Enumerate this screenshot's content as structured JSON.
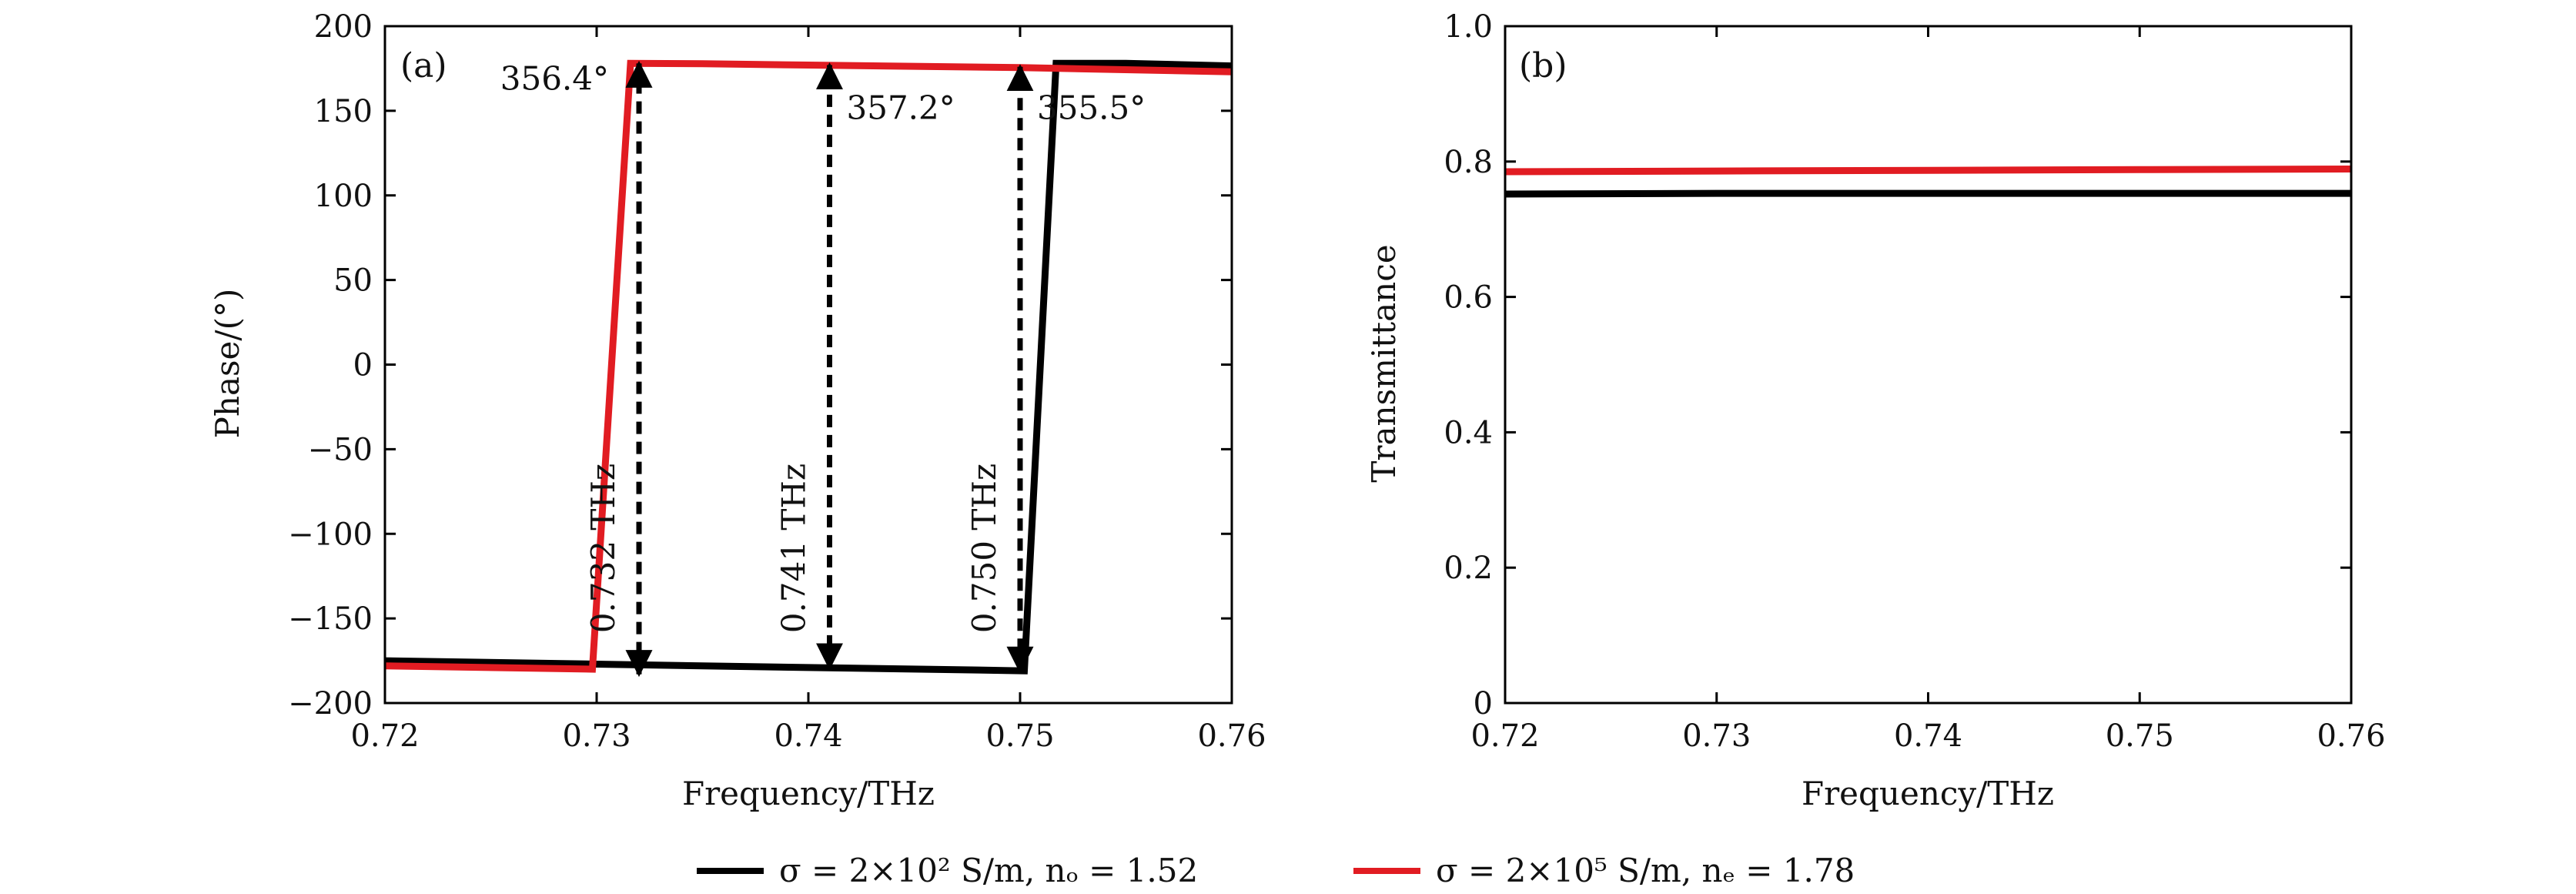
{
  "chart_data": [
    {
      "panel": "(a)",
      "type": "line",
      "xlabel": "Frequency/THz",
      "ylabel": "Phase/(°)",
      "xlim": [
        0.72,
        0.76
      ],
      "ylim": [
        -200,
        200
      ],
      "xticks": [
        0.72,
        0.73,
        0.74,
        0.75,
        0.76
      ],
      "xtick_labels": [
        "0.72",
        "0.73",
        "0.74",
        "0.75",
        "0.76"
      ],
      "yticks": [
        200,
        150,
        100,
        50,
        0,
        -50,
        -100,
        -150,
        -200
      ],
      "ytick_labels": [
        "200",
        "150",
        "100",
        "50",
        "0",
        "−50",
        "−100",
        "−150",
        "−200"
      ],
      "series": [
        {
          "color": "#000000",
          "x": [
            0.72,
            0.73,
            0.74,
            0.748,
            0.7502,
            0.7517,
            0.755,
            0.76
          ],
          "y": [
            -175,
            -177,
            -179,
            -180.5,
            -181,
            178,
            178,
            176.5
          ]
        },
        {
          "color": "#e11c22",
          "x": [
            0.72,
            0.7298,
            0.7316,
            0.735,
            0.74,
            0.75,
            0.76
          ],
          "y": [
            -178,
            -180,
            178,
            177.8,
            177,
            175.5,
            173
          ]
        }
      ],
      "annotations": [
        {
          "text": "356.4°",
          "x": 0.7316,
          "y": 178
        },
        {
          "text": "357.2°",
          "x": 0.741,
          "y": 176
        },
        {
          "text": "355.5°",
          "x": 0.75,
          "y": 176
        },
        {
          "text": "0.732 THz",
          "x": 0.732
        },
        {
          "text": "0.741 THz",
          "x": 0.741
        },
        {
          "text": "0.750 THz",
          "x": 0.75
        }
      ],
      "arrows": [
        {
          "x": 0.732,
          "y_from": -183,
          "y_to": 178
        },
        {
          "x": 0.741,
          "y_from": -179,
          "y_to": 177
        },
        {
          "x": 0.75,
          "y_from": -181,
          "y_to": 176
        }
      ]
    },
    {
      "panel": "(b)",
      "type": "line",
      "xlabel": "Frequency/THz",
      "ylabel": "Transmittance",
      "xlim": [
        0.72,
        0.76
      ],
      "ylim": [
        0,
        1.0
      ],
      "xticks": [
        0.72,
        0.73,
        0.74,
        0.75,
        0.76
      ],
      "xtick_labels": [
        "0.72",
        "0.73",
        "0.74",
        "0.75",
        "0.76"
      ],
      "yticks": [
        1.0,
        0.8,
        0.6,
        0.4,
        0.2,
        0
      ],
      "ytick_labels": [
        "1.0",
        "0.8",
        "0.6",
        "0.4",
        "0.2",
        "0"
      ],
      "series": [
        {
          "color": "#000000",
          "x": [
            0.72,
            0.73,
            0.74,
            0.75,
            0.76
          ],
          "y": [
            0.752,
            0.753,
            0.753,
            0.753,
            0.753
          ]
        },
        {
          "color": "#e11c22",
          "x": [
            0.72,
            0.73,
            0.74,
            0.75,
            0.76
          ],
          "y": [
            0.785,
            0.786,
            0.787,
            0.788,
            0.789
          ]
        }
      ]
    }
  ],
  "legend": {
    "position": "bottom-center",
    "entries": [
      {
        "color": "#000000",
        "label": "σ = 2×10² S/m, nₒ = 1.52"
      },
      {
        "color": "#e11c22",
        "label": "σ = 2×10⁵ S/m, nₑ = 1.78"
      }
    ]
  }
}
